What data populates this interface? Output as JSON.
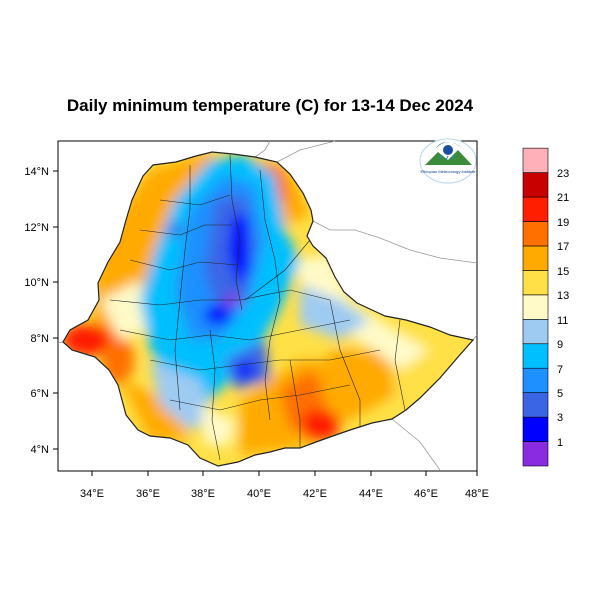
{
  "title": "Daily minimum temperature (C) for 13-14 Dec 2024",
  "map": {
    "lon_range": [
      33,
      48
    ],
    "lat_range": [
      3.2,
      15
    ],
    "x_ticks": [
      "34°E",
      "36°E",
      "38°E",
      "40°E",
      "42°E",
      "44°E",
      "46°E",
      "48°E"
    ],
    "y_ticks": [
      "4°N",
      "6°N",
      "8°N",
      "10°N",
      "12°N",
      "14°N"
    ]
  },
  "legend": {
    "labels": [
      "1",
      "3",
      "5",
      "7",
      "9",
      "11",
      "13",
      "15",
      "17",
      "19",
      "21",
      "23"
    ],
    "colors": [
      "#8a2be2",
      "#0000ff",
      "#3a66e6",
      "#1e90ff",
      "#00bfff",
      "#9ecbf2",
      "#fffac8",
      "#ffe046",
      "#ffaa00",
      "#ff7000",
      "#ff1e00",
      "#c80000",
      "#ffb0b8"
    ]
  },
  "logo": {
    "org_text": "Ethiopian Meteorology Institute",
    "icon": "weather-agency-logo"
  }
}
